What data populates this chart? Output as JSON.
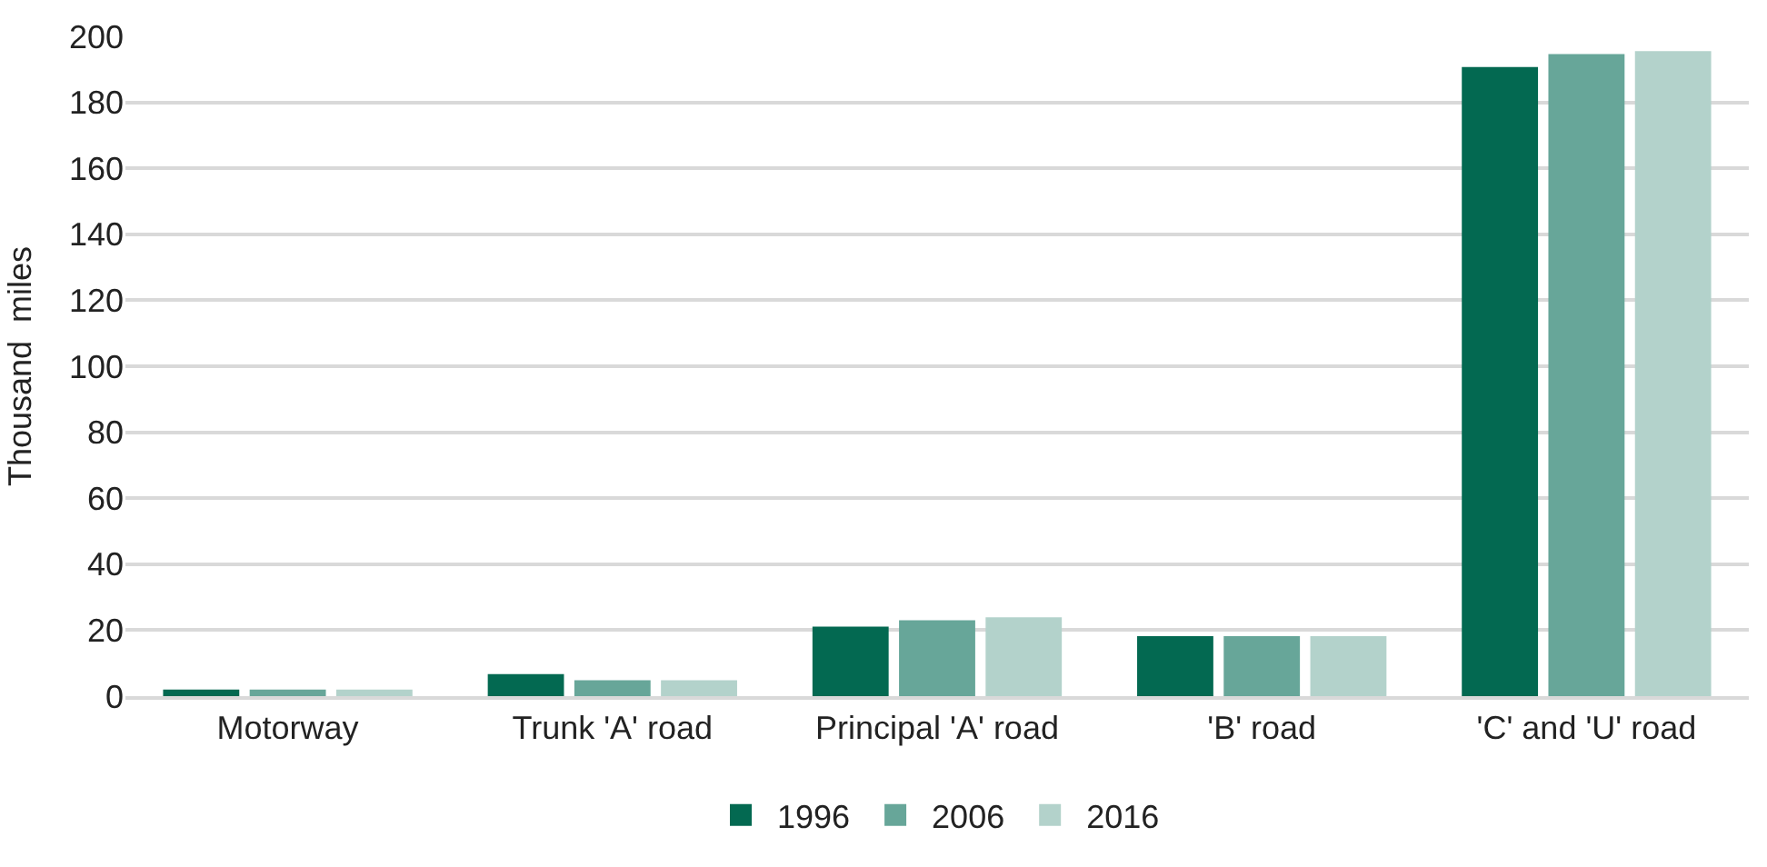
{
  "chart_data": {
    "type": "bar",
    "ylabel": "Thousand  miles",
    "categories": [
      "Motorway",
      "Trunk 'A' road",
      "Principal 'A' road",
      "'B' road",
      "'C' and 'U' road"
    ],
    "series": [
      {
        "name": "1996",
        "color": "#036951",
        "values": [
          2.0,
          6.7,
          21.1,
          18.2,
          190.7
        ]
      },
      {
        "name": "2006",
        "color": "#67a699",
        "values": [
          2.0,
          4.8,
          23.0,
          18.2,
          194.6
        ]
      },
      {
        "name": "2016",
        "color": "#b3d2cb",
        "values": [
          2.0,
          4.8,
          23.9,
          18.2,
          195.5
        ]
      }
    ],
    "ylim": [
      0,
      200
    ],
    "yticks": [
      0,
      20,
      40,
      60,
      80,
      100,
      120,
      140,
      160,
      180,
      200
    ],
    "grid": "y",
    "legend": "bottom"
  }
}
